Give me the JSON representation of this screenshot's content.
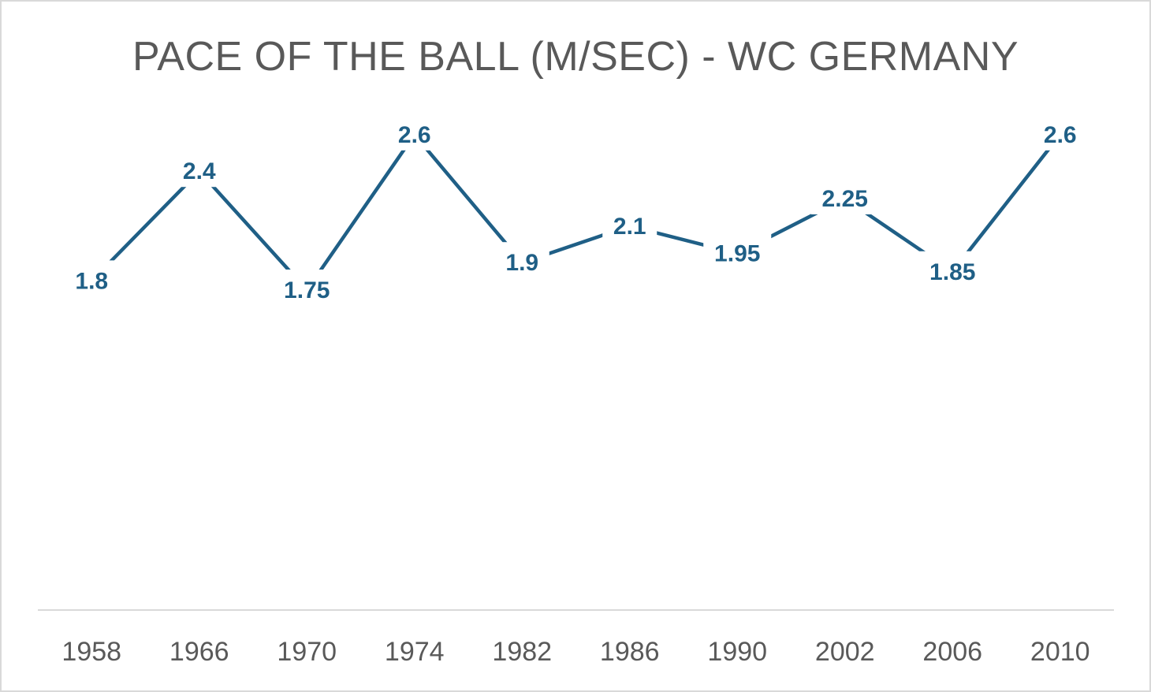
{
  "chart_data": {
    "type": "line",
    "title": "PACE OF THE BALL (M/SEC) - WC GERMANY",
    "xlabel": "",
    "ylabel": "",
    "categories": [
      "1958",
      "1966",
      "1970",
      "1974",
      "1982",
      "1986",
      "1990",
      "2002",
      "2006",
      "2010"
    ],
    "series": [
      {
        "name": "Pace of the ball (m/sec)",
        "values": [
          1.8,
          2.4,
          1.75,
          2.6,
          1.9,
          2.1,
          1.95,
          2.25,
          1.85,
          2.6
        ],
        "labels": [
          "1.8",
          "2.4",
          "1.75",
          "2.6",
          "1.9",
          "2.1",
          "1.95",
          "2.25",
          "1.85",
          "2.6"
        ],
        "color": "#1f5f86"
      }
    ],
    "ylim": [
      0,
      4
    ],
    "grid": false,
    "legend": "none",
    "axis_color": "#d9d9d9"
  }
}
